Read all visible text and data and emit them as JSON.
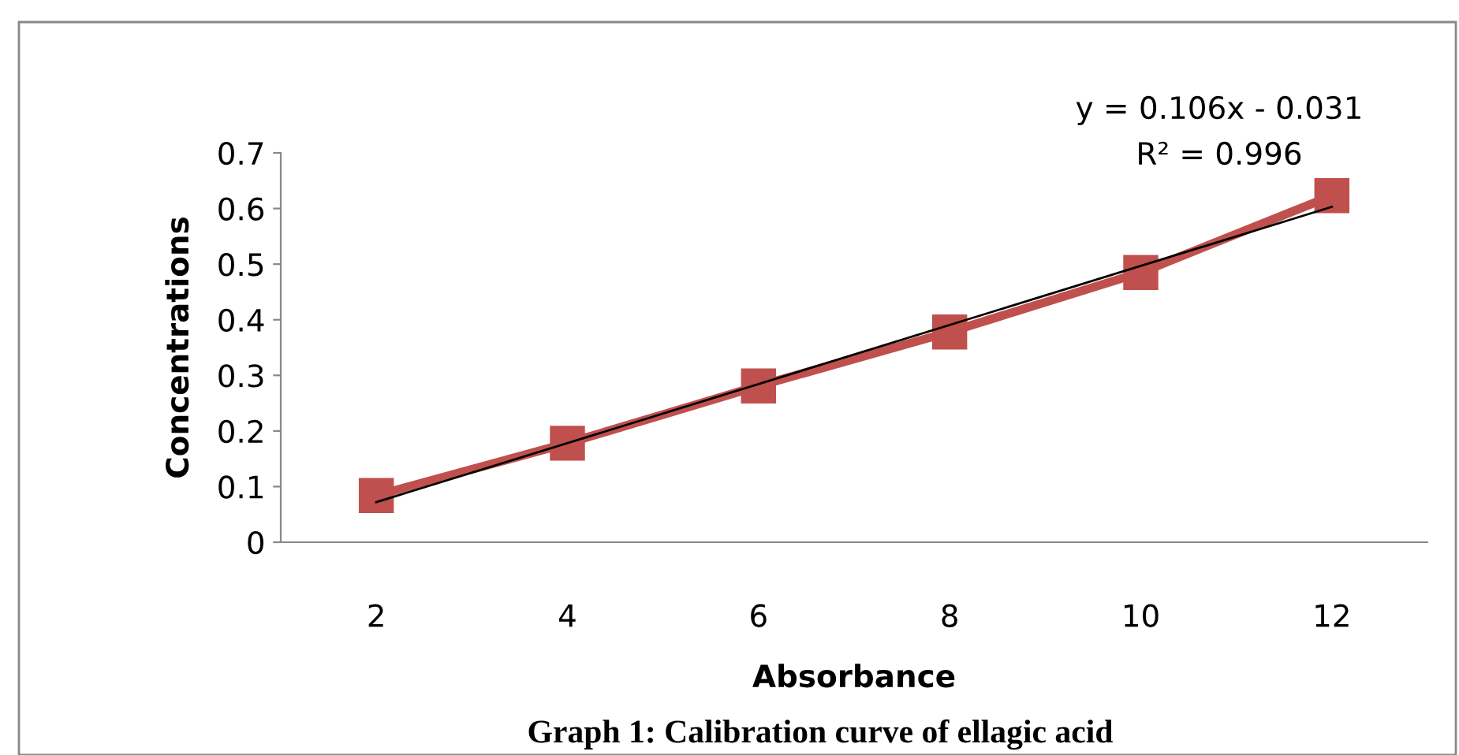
{
  "chart_data": {
    "type": "line",
    "xlabel": "Absorbance",
    "ylabel": "Concentrations",
    "categories": [
      "2",
      "4",
      "6",
      "8",
      "10",
      "12"
    ],
    "series": [
      {
        "color": "#c0504d",
        "marker": "square",
        "values": [
          0.084,
          0.178,
          0.281,
          0.378,
          0.485,
          0.623
        ]
      },
      {
        "type": "line",
        "color": "#000000",
        "marker": "none",
        "x": [
          "2",
          "12"
        ],
        "values": [
          0.072,
          0.603
        ]
      }
    ],
    "ylim": [
      0,
      0.7
    ],
    "yticks": [
      0,
      0.1,
      0.2,
      0.3,
      0.4,
      0.5,
      0.6,
      0.7
    ],
    "grid": false,
    "legend": false,
    "annotations": [
      "y = 0.106x - 0.031",
      "R² = 0.996",
      "Graph 1: Calibration curve of ellagic acid"
    ]
  }
}
